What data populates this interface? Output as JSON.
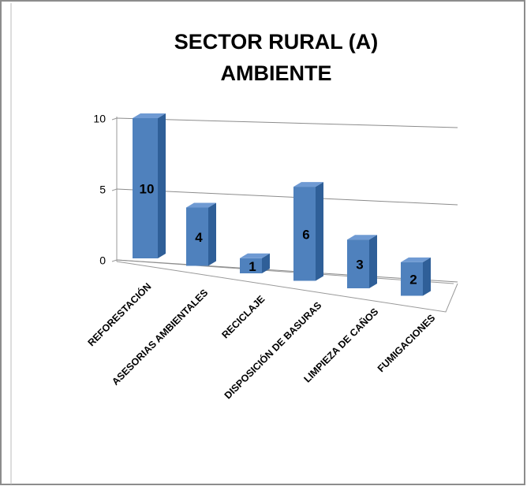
{
  "chart_data": {
    "type": "bar3d",
    "title": [
      "SECTOR RURAL (A)",
      "AMBIENTE"
    ],
    "categories": [
      "REFORESTACIÓN",
      "ASESORIAS AMBIENTALES",
      "RECICLAJE",
      "DISPOSICIÓN DE BASURAS",
      "LIMPIEZA DE CAÑOS",
      "FUMIGACIONES"
    ],
    "values": [
      10,
      4,
      1,
      6,
      3,
      2
    ],
    "color": "#4f81bd",
    "ylim": [
      0,
      10
    ],
    "yticks": [
      0,
      5,
      10
    ],
    "grid": true
  }
}
